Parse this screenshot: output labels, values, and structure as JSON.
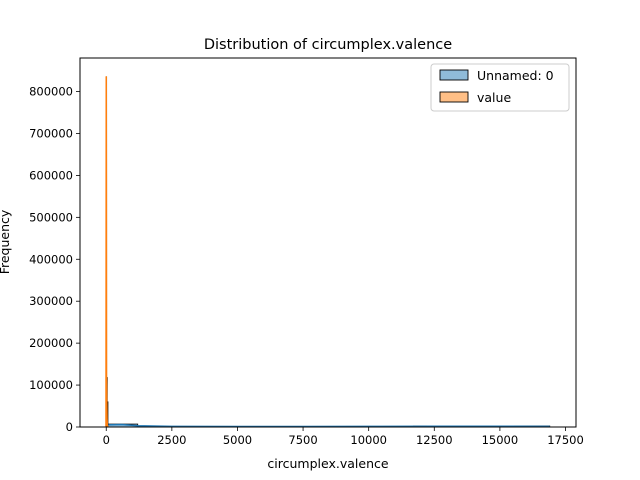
{
  "chart_data": {
    "type": "histogram",
    "title": "Distribution of circumplex.valence",
    "xlabel": "circumplex.valence",
    "ylabel": "Frequency",
    "xlim": [
      -1000,
      17900
    ],
    "ylim": [
      0,
      880000
    ],
    "xticks": [
      0,
      2500,
      5000,
      7500,
      10000,
      12500,
      15000,
      17500
    ],
    "yticks": [
      0,
      100000,
      200000,
      300000,
      400000,
      500000,
      600000,
      700000,
      800000
    ],
    "xtick_labels": [
      "0",
      "2500",
      "5000",
      "7500",
      "10000",
      "12500",
      "15000",
      "17500"
    ],
    "ytick_labels": [
      "0",
      "100000",
      "200000",
      "300000",
      "400000",
      "500000",
      "600000",
      "700000",
      "800000"
    ],
    "legend_position": "upper-right",
    "series": [
      {
        "name": "Unnamed: 0",
        "color": "#1f77b4",
        "fill": "#8fbbd9",
        "bins": [
          {
            "x0": 0,
            "x1": 1200,
            "count": 7000
          },
          {
            "x0": 1200,
            "x1": 11700,
            "count": 1500
          },
          {
            "x0": 11700,
            "x1": 16900,
            "count": 2500
          }
        ],
        "kde_x": [
          0,
          600,
          1200,
          2500,
          5000,
          7500,
          10000,
          12500,
          15000,
          16900
        ],
        "kde_y": [
          5000,
          6000,
          3000,
          1500,
          1200,
          1200,
          1400,
          1800,
          1800,
          1500
        ]
      },
      {
        "name": "value",
        "color": "#ff7f0e",
        "fill": "#ffbf86",
        "bins": [
          {
            "x0": -10,
            "x1": 15,
            "count": 835000
          },
          {
            "x0": 15,
            "x1": 40,
            "count": 118000
          },
          {
            "x0": 40,
            "x1": 65,
            "count": 60000
          }
        ],
        "kde_x": [
          -10,
          -5,
          0,
          5,
          10,
          15,
          20,
          30,
          40,
          60,
          80
        ],
        "kde_y": [
          0,
          400000,
          835000,
          600000,
          118000,
          100000,
          60000,
          20000,
          5000,
          1000,
          0
        ]
      }
    ]
  }
}
